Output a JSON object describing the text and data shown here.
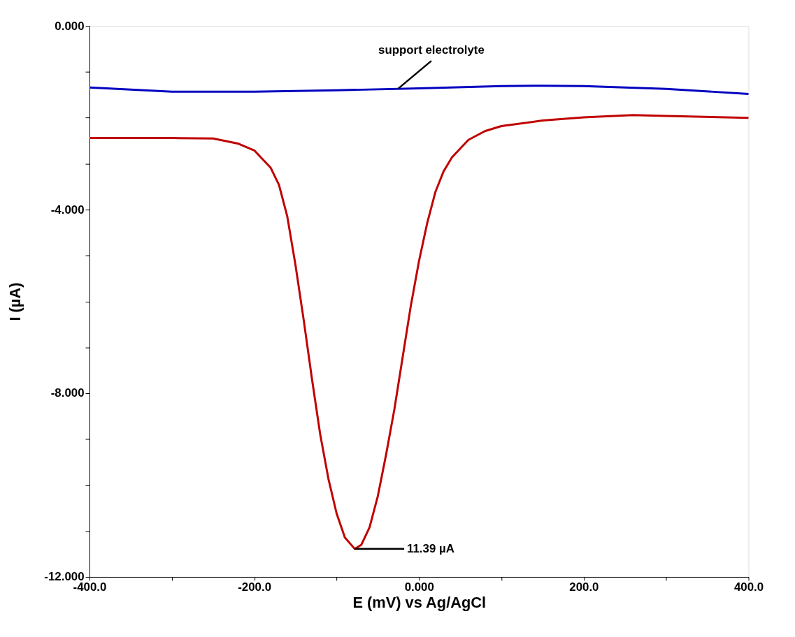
{
  "chart_data": {
    "type": "line",
    "xlabel": "E (mV) vs Ag/AgCl",
    "ylabel": "I (µA)",
    "xlim": [
      -400,
      400
    ],
    "ylim": [
      -12,
      0
    ],
    "xticks": [
      {
        "value": -400,
        "label": "-400.0"
      },
      {
        "value": -300,
        "label": null
      },
      {
        "value": -200,
        "label": "-200.0"
      },
      {
        "value": -100,
        "label": null
      },
      {
        "value": 0,
        "label": "0.000"
      },
      {
        "value": 100,
        "label": null
      },
      {
        "value": 200,
        "label": "200.0"
      },
      {
        "value": 300,
        "label": null
      },
      {
        "value": 400,
        "label": "400.0"
      }
    ],
    "yticks": [
      {
        "value": 0,
        "label": "0.000"
      },
      {
        "value": -1,
        "label": null
      },
      {
        "value": -2,
        "label": null
      },
      {
        "value": -3,
        "label": null
      },
      {
        "value": -4,
        "label": "-4.000"
      },
      {
        "value": -5,
        "label": null
      },
      {
        "value": -6,
        "label": null
      },
      {
        "value": -7,
        "label": null
      },
      {
        "value": -8,
        "label": "-8.000"
      },
      {
        "value": -9,
        "label": null
      },
      {
        "value": -10,
        "label": null
      },
      {
        "value": -11,
        "label": null
      },
      {
        "value": -12,
        "label": "-12.000"
      }
    ],
    "grid": false,
    "marker": "none",
    "line_style": "solid",
    "series": [
      {
        "color": "#0000c0",
        "x": [
          -400,
          -300,
          -200,
          -100,
          0,
          100,
          150,
          200,
          300,
          400
        ],
        "values": [
          -1.34,
          -1.43,
          -1.43,
          -1.4,
          -1.36,
          -1.31,
          -1.3,
          -1.31,
          -1.37,
          -1.48
        ]
      },
      {
        "color": "#c00000",
        "x": [
          -400,
          -300,
          -250,
          -220,
          -200,
          -180,
          -170,
          -160,
          -150,
          -140,
          -130,
          -120,
          -110,
          -100,
          -90,
          -78,
          -70,
          -60,
          -50,
          -40,
          -30,
          -20,
          -10,
          0,
          10,
          20,
          30,
          40,
          60,
          80,
          100,
          150,
          200,
          260,
          300,
          400
        ],
        "values": [
          -2.44,
          -2.44,
          -2.45,
          -2.56,
          -2.71,
          -3.09,
          -3.46,
          -4.14,
          -5.2,
          -6.4,
          -7.68,
          -8.89,
          -9.86,
          -10.62,
          -11.14,
          -11.39,
          -11.3,
          -10.92,
          -10.24,
          -9.34,
          -8.36,
          -7.23,
          -6.1,
          -5.12,
          -4.29,
          -3.61,
          -3.16,
          -2.86,
          -2.48,
          -2.29,
          -2.18,
          -2.06,
          -1.99,
          -1.94,
          -1.96,
          -2.0
        ]
      }
    ],
    "annotations": [
      {
        "text": "support electrolyte",
        "x": -25,
        "y": -1.36
      },
      {
        "text": "11.39 µA",
        "x": -78,
        "y": -11.39
      }
    ]
  }
}
